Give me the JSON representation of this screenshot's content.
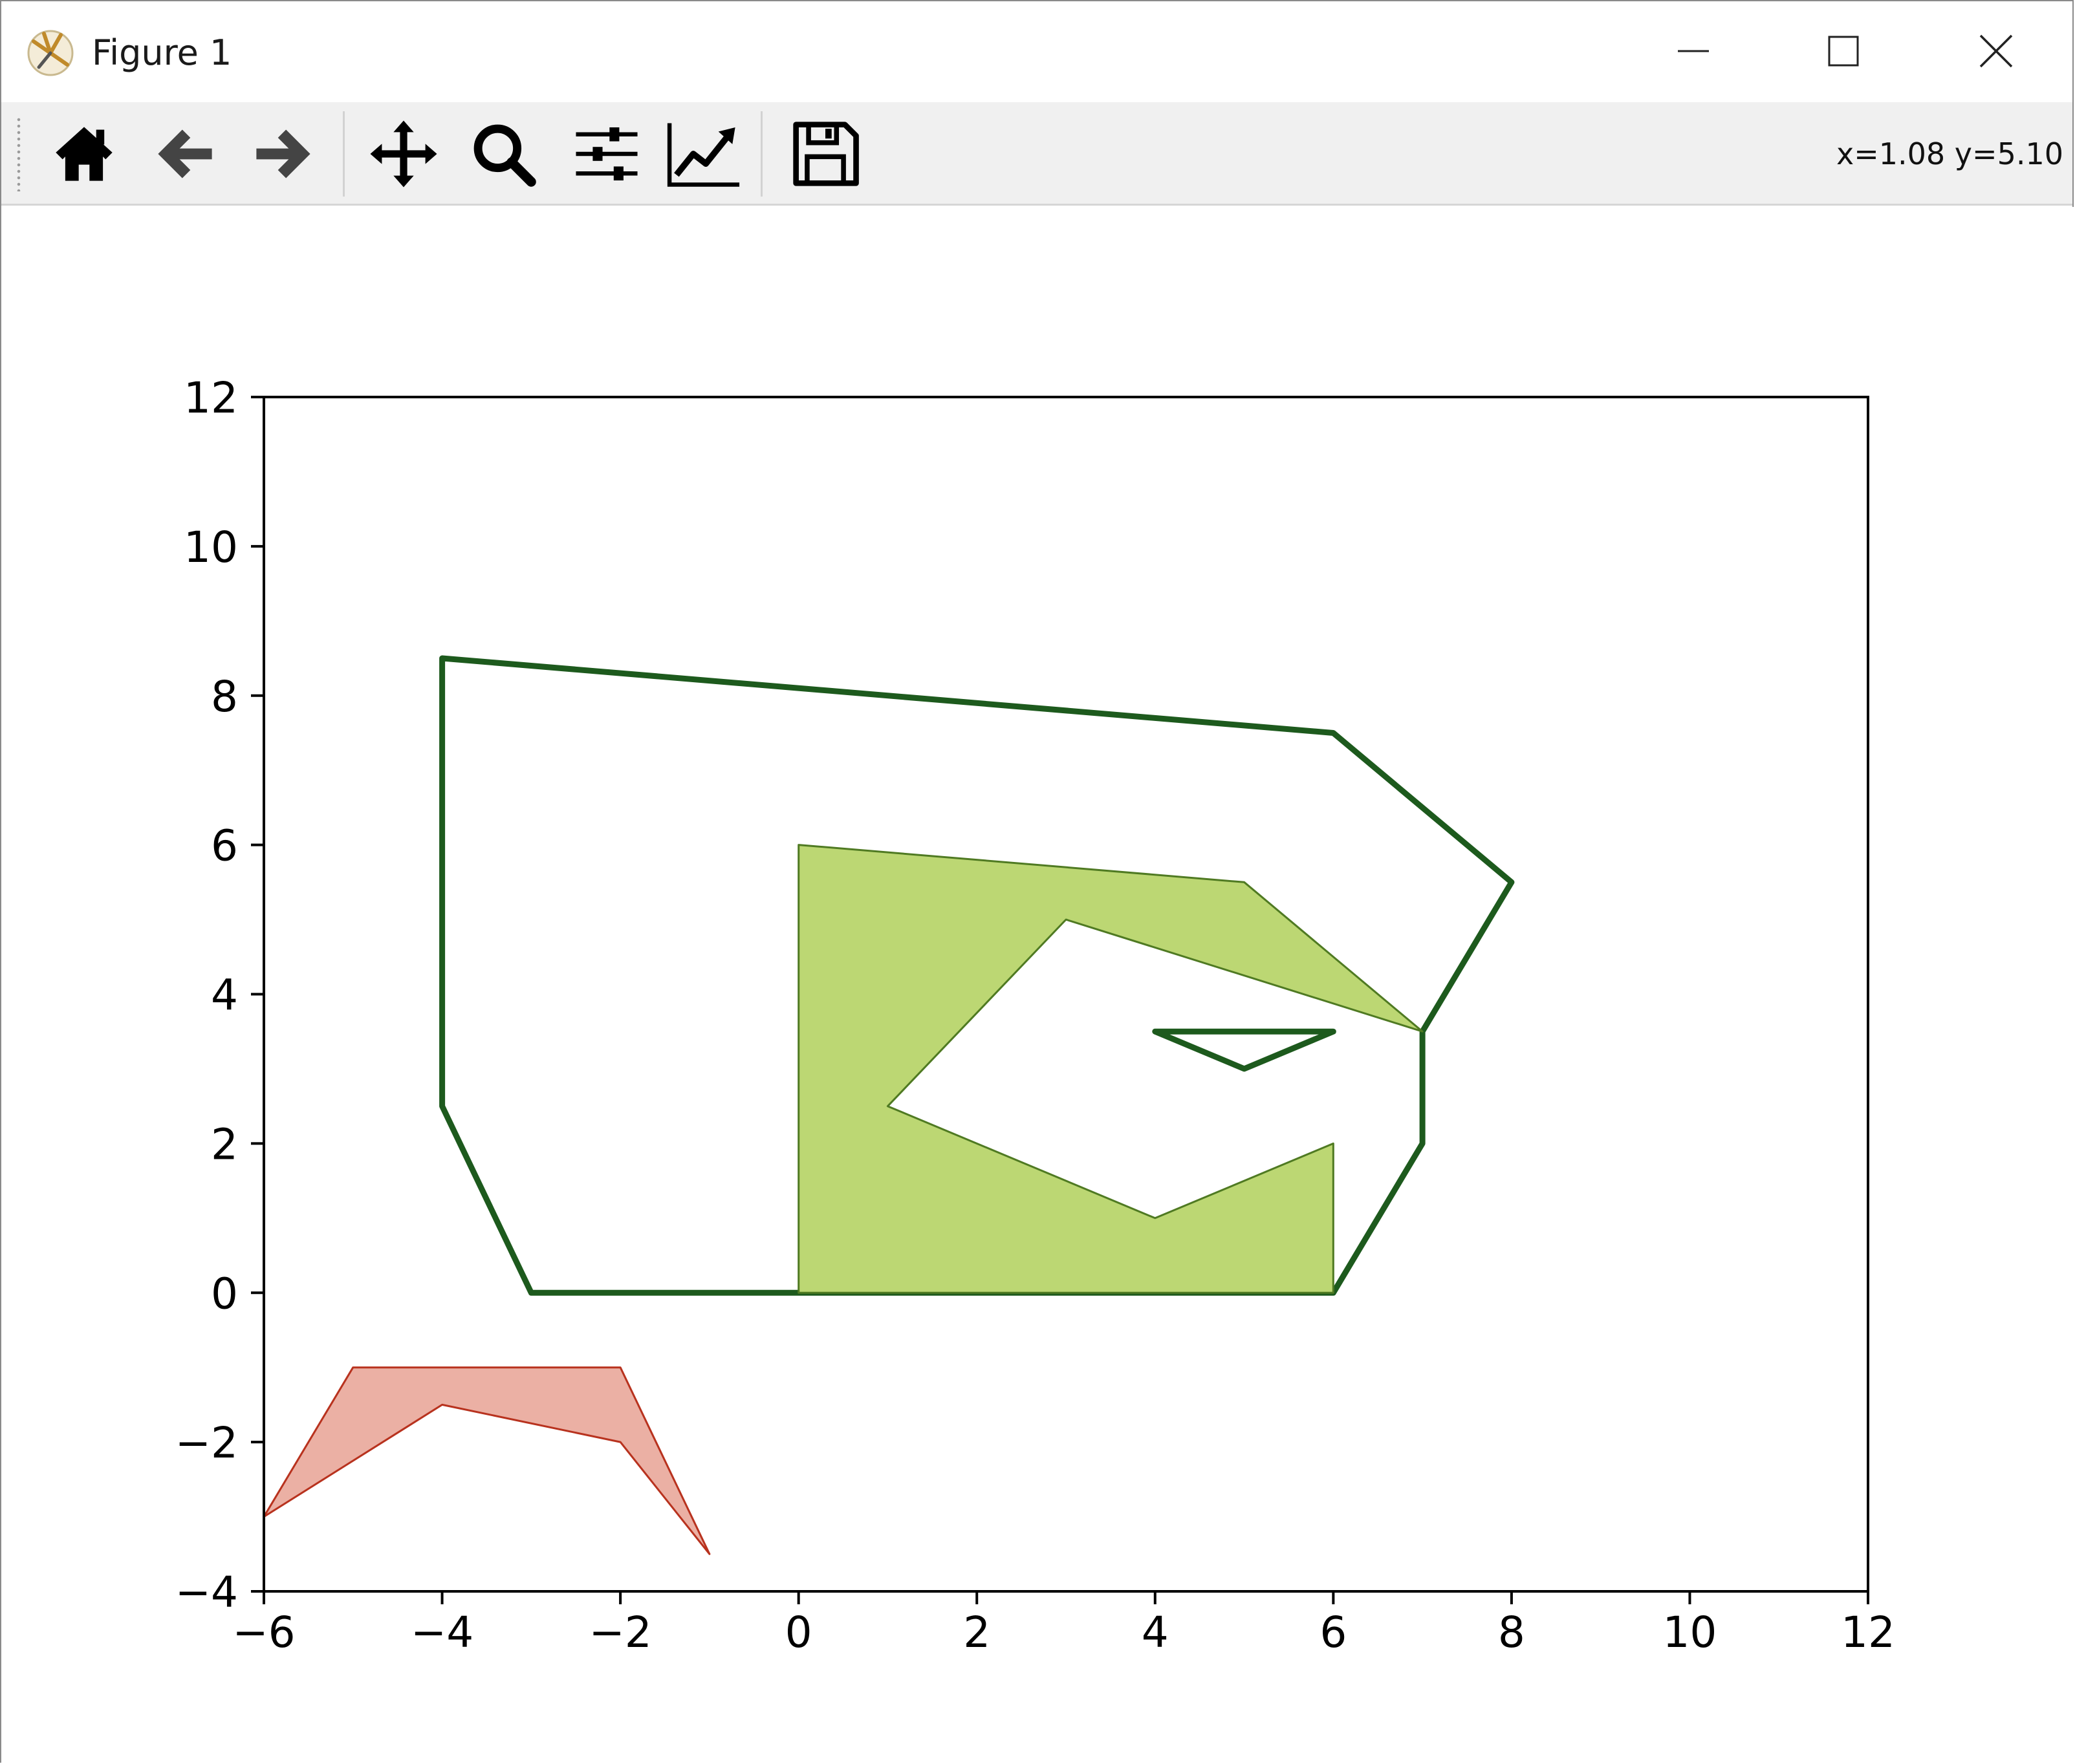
{
  "window": {
    "title": "Figure 1"
  },
  "toolbar": {
    "tools": [
      {
        "name": "home-icon",
        "label": "Home"
      },
      {
        "name": "back-icon",
        "label": "Back"
      },
      {
        "name": "forward-icon",
        "label": "Forward"
      },
      {
        "name": "pan-icon",
        "label": "Pan"
      },
      {
        "name": "zoom-icon",
        "label": "Zoom"
      },
      {
        "name": "configure-subplots-icon",
        "label": "Configure subplots"
      },
      {
        "name": "edit-axis-icon",
        "label": "Edit axis"
      },
      {
        "name": "save-icon",
        "label": "Save"
      }
    ],
    "coords": "x=1.08 y=5.10"
  },
  "chart_data": {
    "type": "area",
    "title": "",
    "xlabel": "",
    "ylabel": "",
    "xlim": [
      -6,
      12
    ],
    "ylim": [
      -4,
      12
    ],
    "xticks": [
      -6,
      -4,
      -2,
      0,
      2,
      4,
      6,
      8,
      10,
      12
    ],
    "yticks": [
      -4,
      -2,
      0,
      2,
      4,
      6,
      8,
      10,
      12
    ],
    "grid": false,
    "legend": "none",
    "polygons": [
      {
        "style": "outline",
        "edge_color": "#1d5a1d",
        "fill_color": "none",
        "points": [
          [
            -4,
            8.5
          ],
          [
            6,
            7.5
          ],
          [
            8,
            5.5
          ],
          [
            7,
            3.5
          ],
          [
            7,
            2
          ],
          [
            6,
            0
          ],
          [
            -3,
            0
          ],
          [
            -4,
            2.5
          ]
        ]
      },
      {
        "style": "outline",
        "edge_color": "#1d5a1d",
        "fill_color": "none",
        "points": [
          [
            4,
            3.5
          ],
          [
            6,
            3.5
          ],
          [
            5,
            3
          ]
        ]
      },
      {
        "style": "filled",
        "edge_color": "#4f7a22",
        "fill_color": "#bcd773",
        "points": [
          [
            0,
            6
          ],
          [
            5,
            5.5
          ],
          [
            7,
            3.5
          ],
          [
            3,
            5
          ],
          [
            1,
            2.5
          ],
          [
            4,
            1
          ],
          [
            6,
            2
          ],
          [
            6,
            0
          ],
          [
            0,
            0
          ]
        ]
      },
      {
        "style": "filled",
        "edge_color": "#b8321e",
        "fill_color": "#ebb0a4",
        "points": [
          [
            -5,
            -1
          ],
          [
            -2,
            -1
          ],
          [
            -1,
            -3.5
          ],
          [
            -2,
            -2
          ],
          [
            -4,
            -1.5
          ],
          [
            -6,
            -3
          ]
        ]
      }
    ]
  }
}
